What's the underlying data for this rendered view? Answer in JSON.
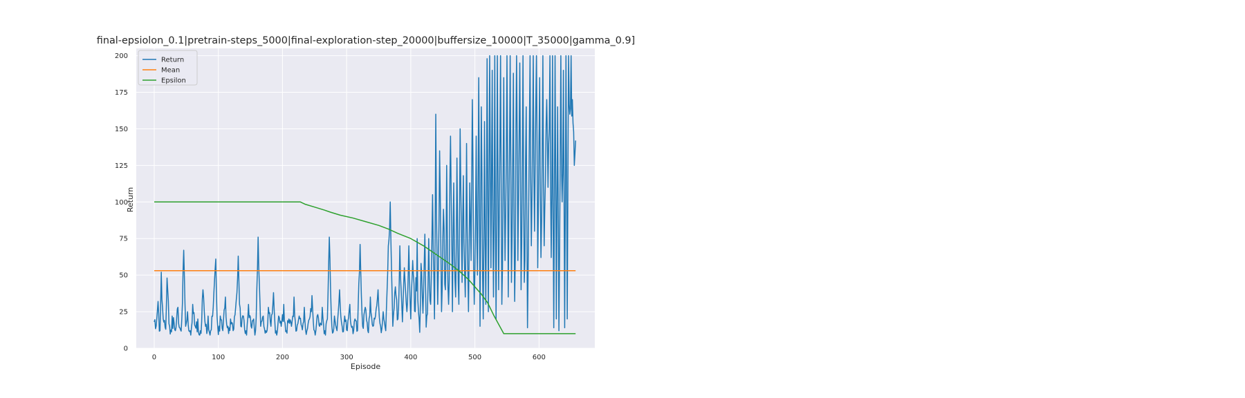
{
  "chart_data": {
    "type": "line",
    "title": "final-epsiolon_0.1|pretrain-steps_5000|final-exploration-step_20000|buffersize_10000|T_35000|gamma_0.9]",
    "xlabel": "Episode",
    "ylabel": "Return",
    "xlim": [
      -28,
      687
    ],
    "ylim": [
      0,
      205
    ],
    "xticks": [
      0,
      100,
      200,
      300,
      400,
      500,
      600
    ],
    "yticks": [
      0,
      25,
      50,
      75,
      100,
      125,
      150,
      175,
      200
    ],
    "grid": true,
    "background": "#eaeaf2",
    "legend_position": "top-left",
    "series": [
      {
        "name": "Return",
        "color": "#1f77b4",
        "x_start": 0,
        "anchors": [
          [
            0,
            18
          ],
          [
            3,
            15
          ],
          [
            6,
            32
          ],
          [
            9,
            12
          ],
          [
            11,
            52
          ],
          [
            14,
            20
          ],
          [
            18,
            13
          ],
          [
            20,
            48
          ],
          [
            24,
            15
          ],
          [
            28,
            22
          ],
          [
            33,
            12
          ],
          [
            37,
            28
          ],
          [
            40,
            14
          ],
          [
            43,
            20
          ],
          [
            46,
            67
          ],
          [
            49,
            15
          ],
          [
            52,
            25
          ],
          [
            56,
            12
          ],
          [
            60,
            30
          ],
          [
            64,
            15
          ],
          [
            68,
            20
          ],
          [
            72,
            12
          ],
          [
            76,
            40
          ],
          [
            80,
            15
          ],
          [
            84,
            22
          ],
          [
            88,
            12
          ],
          [
            92,
            28
          ],
          [
            96,
            61
          ],
          [
            99,
            15
          ],
          [
            103,
            22
          ],
          [
            107,
            12
          ],
          [
            111,
            35
          ],
          [
            115,
            15
          ],
          [
            119,
            20
          ],
          [
            123,
            12
          ],
          [
            127,
            28
          ],
          [
            131,
            63
          ],
          [
            135,
            15
          ],
          [
            139,
            22
          ],
          [
            143,
            12
          ],
          [
            147,
            30
          ],
          [
            151,
            15
          ],
          [
            155,
            20
          ],
          [
            158,
            12
          ],
          [
            162,
            76
          ],
          [
            166,
            15
          ],
          [
            170,
            22
          ],
          [
            174,
            12
          ],
          [
            178,
            28
          ],
          [
            182,
            15
          ],
          [
            186,
            38
          ],
          [
            190,
            12
          ],
          [
            194,
            22
          ],
          [
            198,
            15
          ],
          [
            202,
            30
          ],
          [
            206,
            12
          ],
          [
            210,
            20
          ],
          [
            214,
            15
          ],
          [
            218,
            35
          ],
          [
            222,
            12
          ],
          [
            226,
            22
          ],
          [
            230,
            15
          ],
          [
            234,
            28
          ],
          [
            238,
            12
          ],
          [
            242,
            20
          ],
          [
            246,
            36
          ],
          [
            250,
            12
          ],
          [
            254,
            22
          ],
          [
            258,
            15
          ],
          [
            262,
            28
          ],
          [
            266,
            12
          ],
          [
            270,
            20
          ],
          [
            273,
            76
          ],
          [
            277,
            15
          ],
          [
            281,
            22
          ],
          [
            285,
            12
          ],
          [
            289,
            40
          ],
          [
            293,
            15
          ],
          [
            297,
            22
          ],
          [
            301,
            12
          ],
          [
            305,
            30
          ],
          [
            309,
            15
          ],
          [
            313,
            20
          ],
          [
            317,
            12
          ],
          [
            321,
            71
          ],
          [
            325,
            15
          ],
          [
            329,
            28
          ],
          [
            333,
            12
          ],
          [
            337,
            35
          ],
          [
            341,
            15
          ],
          [
            345,
            22
          ],
          [
            349,
            40
          ],
          [
            353,
            15
          ],
          [
            357,
            25
          ],
          [
            361,
            12
          ],
          [
            365,
            70
          ],
          [
            368,
            100
          ],
          [
            372,
            15
          ],
          [
            376,
            42
          ],
          [
            380,
            20
          ],
          [
            383,
            70
          ],
          [
            387,
            18
          ],
          [
            390,
            55
          ],
          [
            394,
            25
          ],
          [
            397,
            70
          ],
          [
            400,
            20
          ],
          [
            403,
            60
          ],
          [
            407,
            25
          ],
          [
            410,
            75
          ],
          [
            413,
            20
          ],
          [
            416,
            58
          ],
          [
            419,
            24
          ],
          [
            422,
            78
          ],
          [
            425,
            22
          ],
          [
            428,
            75
          ],
          [
            431,
            30
          ],
          [
            434,
            105
          ],
          [
            437,
            20
          ],
          [
            439,
            160
          ],
          [
            442,
            30
          ],
          [
            445,
            135
          ],
          [
            448,
            25
          ],
          [
            451,
            95
          ],
          [
            454,
            40
          ],
          [
            456,
            125
          ],
          [
            459,
            30
          ],
          [
            462,
            145
          ],
          [
            465,
            25
          ],
          [
            467,
            113
          ],
          [
            470,
            35
          ],
          [
            472,
            130
          ],
          [
            475,
            30
          ],
          [
            477,
            150
          ],
          [
            480,
            45
          ],
          [
            482,
            118
          ],
          [
            485,
            35
          ],
          [
            487,
            140
          ],
          [
            490,
            25
          ],
          [
            492,
            113
          ],
          [
            494,
            60
          ],
          [
            496,
            170
          ],
          [
            499,
            30
          ],
          [
            502,
            145
          ],
          [
            504,
            50
          ],
          [
            506,
            185
          ],
          [
            508,
            15
          ],
          [
            510,
            165
          ],
          [
            513,
            20
          ],
          [
            515,
            155
          ],
          [
            517,
            30
          ],
          [
            519,
            198
          ],
          [
            521,
            25
          ],
          [
            523,
            200
          ],
          [
            525,
            55
          ],
          [
            527,
            190
          ],
          [
            529,
            35
          ],
          [
            531,
            200
          ],
          [
            533,
            20
          ],
          [
            535,
            200
          ],
          [
            537,
            40
          ],
          [
            540,
            200
          ],
          [
            542,
            30
          ],
          [
            545,
            185
          ],
          [
            547,
            60
          ],
          [
            550,
            200
          ],
          [
            552,
            35
          ],
          [
            555,
            200
          ],
          [
            557,
            45
          ],
          [
            560,
            188
          ],
          [
            562,
            32
          ],
          [
            565,
            200
          ],
          [
            567,
            60
          ],
          [
            570,
            195
          ],
          [
            572,
            40
          ],
          [
            575,
            200
          ],
          [
            577,
            45
          ],
          [
            580,
            165
          ],
          [
            582,
            14
          ],
          [
            586,
            200
          ],
          [
            588,
            70
          ],
          [
            591,
            200
          ],
          [
            593,
            80
          ],
          [
            596,
            200
          ],
          [
            598,
            55
          ],
          [
            601,
            185
          ],
          [
            603,
            62
          ],
          [
            606,
            200
          ],
          [
            608,
            70
          ],
          [
            612,
            170
          ],
          [
            614,
            110
          ],
          [
            617,
            200
          ],
          [
            619,
            62
          ],
          [
            621,
            200
          ],
          [
            623,
            14
          ],
          [
            625,
            200
          ],
          [
            627,
            20
          ],
          [
            629,
            165
          ],
          [
            631,
            12
          ],
          [
            634,
            200
          ],
          [
            636,
            100
          ],
          [
            638,
            190
          ],
          [
            640,
            14
          ],
          [
            642,
            200
          ],
          [
            644,
            20
          ],
          [
            646,
            200
          ],
          [
            648,
            160
          ],
          [
            650,
            200
          ],
          [
            652,
            170
          ],
          [
            655,
            125
          ],
          [
            657,
            142
          ]
        ]
      },
      {
        "name": "Mean",
        "color": "#ff7f0e",
        "points": [
          [
            0,
            53
          ],
          [
            657,
            53
          ]
        ]
      },
      {
        "name": "Epsilon",
        "color": "#2ca02c",
        "points": [
          [
            0,
            100
          ],
          [
            228,
            100
          ],
          [
            235,
            98.5
          ],
          [
            250,
            96.5
          ],
          [
            265,
            94.5
          ],
          [
            275,
            93
          ],
          [
            290,
            91
          ],
          [
            310,
            89
          ],
          [
            330,
            86.5
          ],
          [
            350,
            84
          ],
          [
            365,
            81.5
          ],
          [
            380,
            78.5
          ],
          [
            400,
            75
          ],
          [
            420,
            70
          ],
          [
            440,
            64
          ],
          [
            460,
            58
          ],
          [
            475,
            53
          ],
          [
            490,
            47
          ],
          [
            500,
            42
          ],
          [
            510,
            37
          ],
          [
            520,
            31
          ],
          [
            530,
            22
          ],
          [
            545,
            10
          ],
          [
            657,
            10
          ]
        ]
      }
    ]
  }
}
